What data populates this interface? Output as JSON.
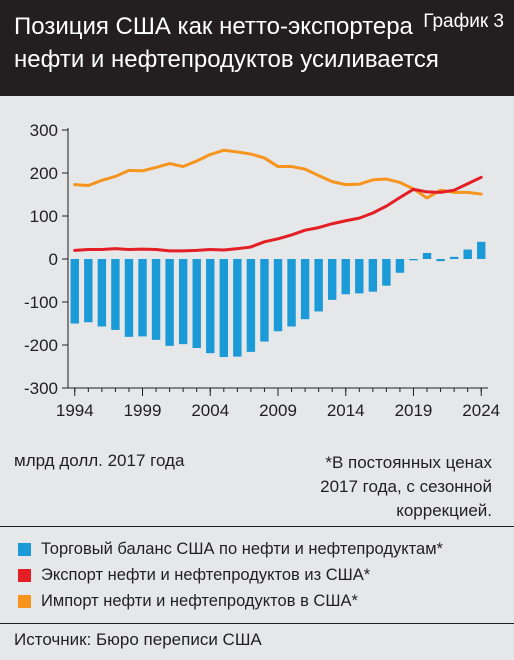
{
  "header": {
    "title_lines": [
      "Позиция США как нетто-экспортера",
      "нефти и нефтепродуктов усиливается"
    ],
    "figure_label": "График 3"
  },
  "units_label": "млрд долл. 2017 года",
  "note_lines": [
    "*В постоянных ценах",
    "2017 года, с сезонной",
    "коррекцией."
  ],
  "source": "Источник: Бюро переписи США",
  "colors": {
    "header_bg": "#231f20",
    "background": "#e6e7e8",
    "balance": "#1a9ad6",
    "exports": "#e31e25",
    "imports": "#f7941d"
  },
  "chart_data": {
    "type": "bar",
    "x_ticks": [
      "1994",
      "1999",
      "2004",
      "2009",
      "2014",
      "2019",
      "2024"
    ],
    "y_ticks": [
      "300",
      "200",
      "100",
      "0",
      "-100",
      "-200",
      "-300"
    ],
    "xlim": [
      1993.5,
      2024.5
    ],
    "ylim": [
      -300,
      300
    ],
    "grid": false,
    "series": [
      {
        "name": "Торговый баланс США по нефти и нефтепродуктам*",
        "kind": "bar",
        "x": [
          1994,
          1995,
          1996,
          1997,
          1998,
          1999,
          2000,
          2001,
          2002,
          2003,
          2004,
          2005,
          2006,
          2007,
          2008,
          2009,
          2010,
          2011,
          2012,
          2013,
          2014,
          2015,
          2016,
          2017,
          2018,
          2019,
          2020,
          2021,
          2022,
          2023,
          2024
        ],
        "values": [
          -150,
          -147,
          -157,
          -165,
          -181,
          -180,
          -188,
          -202,
          -198,
          -207,
          -219,
          -228,
          -227,
          -216,
          -192,
          -168,
          -157,
          -140,
          -122,
          -95,
          -82,
          -80,
          -76,
          -62,
          -32,
          -3,
          14,
          -5,
          5,
          22,
          40
        ]
      },
      {
        "name": "Экспорт нефти и нефтепродуктов из США*",
        "kind": "line",
        "x": [
          1994,
          1995,
          1996,
          1997,
          1998,
          1999,
          2000,
          2001,
          2002,
          2003,
          2004,
          2005,
          2006,
          2007,
          2008,
          2009,
          2010,
          2011,
          2012,
          2013,
          2014,
          2015,
          2016,
          2017,
          2018,
          2019,
          2020,
          2021,
          2022,
          2023,
          2024
        ],
        "values": [
          20,
          22,
          22,
          24,
          22,
          23,
          22,
          19,
          19,
          20,
          22,
          21,
          24,
          28,
          40,
          47,
          56,
          67,
          73,
          82,
          89,
          95,
          107,
          123,
          143,
          162,
          156,
          155,
          160,
          175,
          190
        ]
      },
      {
        "name": "Импорт нефти и нефтепродуктов в США*",
        "kind": "line",
        "x": [
          1994,
          1995,
          1996,
          1997,
          1998,
          1999,
          2000,
          2001,
          2002,
          2003,
          2004,
          2005,
          2006,
          2007,
          2008,
          2009,
          2010,
          2011,
          2012,
          2013,
          2014,
          2015,
          2016,
          2017,
          2018,
          2019,
          2020,
          2021,
          2022,
          2023,
          2024
        ],
        "values": [
          173,
          171,
          183,
          192,
          206,
          205,
          213,
          222,
          215,
          228,
          243,
          253,
          249,
          244,
          235,
          215,
          215,
          209,
          194,
          180,
          173,
          174,
          184,
          186,
          178,
          163,
          142,
          160,
          155,
          155,
          151
        ]
      }
    ]
  }
}
